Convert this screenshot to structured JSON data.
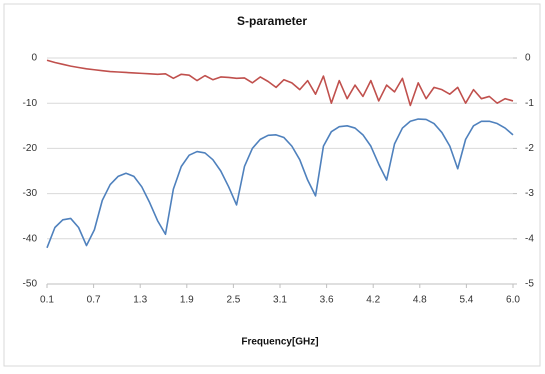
{
  "chart_data": {
    "type": "line",
    "title": "S-parameter",
    "x_label": "Frequency[GHz]",
    "x": [
      0.1,
      0.2,
      0.3,
      0.4,
      0.5,
      0.6,
      0.7,
      0.8,
      0.9,
      1.0,
      1.1,
      1.2,
      1.3,
      1.4,
      1.5,
      1.6,
      1.7,
      1.8,
      1.9,
      2.0,
      2.1,
      2.2,
      2.3,
      2.4,
      2.5,
      2.6,
      2.7,
      2.8,
      2.9,
      3.0,
      3.1,
      3.2,
      3.3,
      3.4,
      3.5,
      3.6,
      3.7,
      3.8,
      3.9,
      4.0,
      4.1,
      4.2,
      4.3,
      4.4,
      4.5,
      4.6,
      4.7,
      4.8,
      4.9,
      5.0,
      5.1,
      5.2,
      5.3,
      5.4,
      5.5,
      5.6,
      5.7,
      5.8,
      5.9,
      6.0
    ],
    "series": [
      {
        "color": "#c0504d",
        "values": [
          -0.5,
          -1,
          -1.4,
          -1.8,
          -2.1,
          -2.4,
          -2.6,
          -2.8,
          -3,
          -3.1,
          -3.2,
          -3.3,
          -3.4,
          -3.5,
          -3.6,
          -3.5,
          -4.5,
          -3.6,
          -3.8,
          -5,
          -3.9,
          -4.8,
          -4.2,
          -4.3,
          -4.5,
          -4.4,
          -5.5,
          -4.2,
          -5.2,
          -6.5,
          -4.8,
          -5.5,
          -7,
          -5,
          -8,
          -4,
          -10,
          -5,
          -9,
          -6,
          -8.5,
          -5,
          -9.5,
          -6,
          -7.5,
          -4.5,
          -10.5,
          -5.5,
          -9,
          -6.5,
          -7,
          -8,
          -6.5,
          -10,
          -7,
          -9,
          -8.5,
          -10,
          -9,
          -9.5
        ]
      },
      {
        "color": "#4f81bd",
        "values": [
          -42,
          -37.5,
          -35.8,
          -35.5,
          -37.5,
          -41.5,
          -38,
          -31.5,
          -28,
          -26.2,
          -25.5,
          -26.2,
          -28.5,
          -32,
          -36,
          -39,
          -29,
          -24,
          -21.5,
          -20.7,
          -21,
          -22.5,
          -25,
          -28.5,
          -32.5,
          -24,
          -20,
          -18,
          -17.1,
          -17,
          -17.6,
          -19.5,
          -22.5,
          -27,
          -30.5,
          -19.5,
          -16.3,
          -15.2,
          -15,
          -15.5,
          -17,
          -19.5,
          -23.5,
          -27,
          -19,
          -15.5,
          -14,
          -13.5,
          -13.6,
          -14.5,
          -16.5,
          -19.5,
          -24.5,
          -18,
          -15,
          -14,
          -14,
          -14.5,
          -15.5,
          -17
        ]
      }
    ],
    "xlim": [
      0.1,
      6.0
    ],
    "xticks": [
      0.1,
      {
        "value": 0.69,
        "label": "0.7"
      },
      {
        "value": 1.28,
        "label": "1.3"
      },
      {
        "value": 1.87,
        "label": "1.9"
      },
      {
        "value": 2.46,
        "label": "2.5"
      },
      {
        "value": 3.05,
        "label": "3.1"
      },
      {
        "value": 3.64,
        "label": "3.6"
      },
      {
        "value": 4.23,
        "label": "4.2"
      },
      {
        "value": 4.82,
        "label": "4.8"
      },
      {
        "value": 5.41,
        "label": "5.4"
      },
      {
        "value": 6,
        "label": "6.0"
      }
    ],
    "ylim": [
      -50,
      0
    ],
    "yticks": [
      0,
      -10,
      -20,
      -30,
      -40,
      -50
    ],
    "y2lim": [
      -5,
      0
    ],
    "y2ticks": [
      0,
      -1,
      -2,
      -3,
      -4,
      -5
    ],
    "grid": true
  }
}
